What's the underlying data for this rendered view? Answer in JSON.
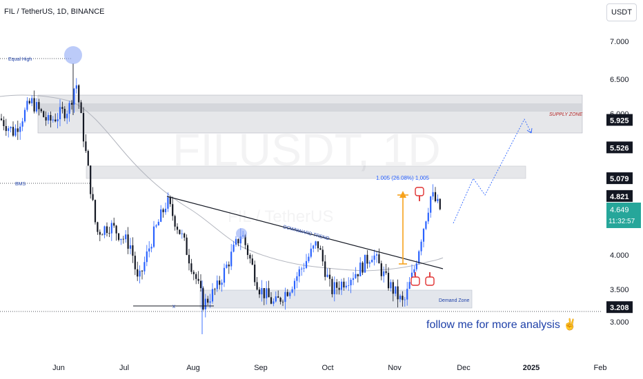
{
  "header": {
    "pair_title": "FIL / TetherUS, 1D, BINANCE",
    "currency": "USDT"
  },
  "watermark": {
    "symbol": "FILUSDT, 1D",
    "name": "FIL / TetherUS"
  },
  "chart_data": {
    "type": "candlestick",
    "title": "FIL / TetherUS, 1D, BINANCE",
    "xlabel": "",
    "ylabel": "",
    "x_tick_labels": [
      "Jun",
      "Jul",
      "Aug",
      "Sep",
      "Oct",
      "Nov",
      "Dec",
      "2025",
      "Feb"
    ],
    "y_tick_labels": [
      "7.000",
      "6.500",
      "6.000",
      "5.500",
      "4.000",
      "3.500",
      "3.000"
    ],
    "ylim": [
      2.8,
      7.4
    ],
    "price_labels": [
      {
        "text": "5.925",
        "value": 5.925,
        "style": "dark"
      },
      {
        "text": "5.526",
        "value": 5.526,
        "style": "dark"
      },
      {
        "text": "5.079",
        "value": 5.079,
        "style": "dark"
      },
      {
        "text": "4.821",
        "value": 4.821,
        "style": "dark"
      },
      {
        "text": "3.208",
        "value": 3.208,
        "style": "dark"
      }
    ],
    "last_price": {
      "text": "4.649",
      "countdown": "11:32:57",
      "value": 4.649
    },
    "ohlc_sample": [
      {
        "o": 6.05,
        "h": 6.35,
        "l": 5.9,
        "c": 6.2
      },
      {
        "o": 6.3,
        "h": 6.72,
        "l": 6.1,
        "c": 6.15
      },
      {
        "o": 6.0,
        "h": 6.2,
        "l": 5.55,
        "c": 5.62
      },
      {
        "o": 5.45,
        "h": 5.55,
        "l": 5.0,
        "c": 5.05
      },
      {
        "o": 4.65,
        "h": 4.75,
        "l": 4.2,
        "c": 4.3
      },
      {
        "o": 3.8,
        "h": 3.9,
        "l": 3.3,
        "c": 3.45
      },
      {
        "o": 4.5,
        "h": 4.75,
        "l": 4.3,
        "c": 4.7
      },
      {
        "o": 3.4,
        "h": 3.5,
        "l": 2.85,
        "c": 3.3
      },
      {
        "o": 4.0,
        "h": 4.3,
        "l": 3.9,
        "c": 4.25
      },
      {
        "o": 3.3,
        "h": 3.4,
        "l": 3.18,
        "c": 3.25
      },
      {
        "o": 4.1,
        "h": 4.3,
        "l": 4.0,
        "c": 4.2
      },
      {
        "o": 3.55,
        "h": 3.65,
        "l": 3.45,
        "c": 3.5
      },
      {
        "o": 3.2,
        "h": 3.5,
        "l": 3.19,
        "c": 3.45
      },
      {
        "o": 3.9,
        "h": 4.45,
        "l": 3.85,
        "c": 4.4
      },
      {
        "o": 4.3,
        "h": 4.82,
        "l": 4.25,
        "c": 4.7
      },
      {
        "o": 4.65,
        "h": 4.8,
        "l": 4.2,
        "c": 4.649
      }
    ],
    "zones": [
      {
        "label": "SUPPLY ZONE",
        "from": 5.55,
        "to": 6.22
      },
      {
        "label": "",
        "from": 5.09,
        "to": 5.27
      },
      {
        "label": "Demand Zone",
        "from": 3.2,
        "to": 3.45
      }
    ],
    "annotations": {
      "equal_high": "Equal High",
      "bms": "BMS",
      "x_marker": "x",
      "trend": "DOWNWARD TREND",
      "measure": "1.005 (26.08%) 1,005",
      "supply_zone": "SUPPLY ZONE",
      "demand_zone": "Demand Zone",
      "promo": "follow me for more analysis ✌"
    },
    "colors": {
      "up": "#2962ff",
      "down": "#131722",
      "ma": "#b2b5be",
      "supply": "#e6e7ea",
      "demand": "#e3e6ec",
      "measure": "#f7a21b",
      "accent_text": "#1e40a8",
      "supply_text": "#b22222"
    },
    "grid": false,
    "legend": "none"
  }
}
